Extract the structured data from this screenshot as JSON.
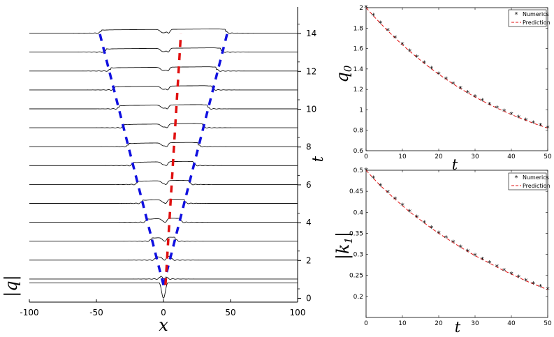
{
  "chart_data": [
    {
      "type": "line",
      "panel": "waterfall",
      "xlabel": "x",
      "ylabel": "t",
      "left_label": "|q|",
      "xlim": [
        -100,
        100
      ],
      "ylim": [
        0,
        14
      ],
      "x_ticks": [
        "-100",
        "-50",
        "0",
        "50",
        "100"
      ],
      "y_ticks": [
        "0",
        "2",
        "4",
        "6",
        "8",
        "10",
        "12",
        "14"
      ],
      "profile_times": [
        0,
        1,
        2,
        3,
        4,
        5,
        6,
        7,
        8,
        9,
        10,
        11,
        12,
        13,
        14
      ],
      "series": [
        {
          "color": "#1010e0",
          "t": [
            0.7,
            14
          ],
          "x": [
            0,
            -47.5
          ]
        },
        {
          "color": "#1010e0",
          "t": [
            0.7,
            14
          ],
          "x": [
            0,
            47.5
          ]
        },
        {
          "color": "#e01010",
          "t": [
            0.7,
            14
          ],
          "x": [
            1.5,
            13
          ]
        }
      ]
    },
    {
      "type": "scatter",
      "panel": "q0",
      "xlabel": "t",
      "ylabel": "q0",
      "xlim": [
        0,
        50
      ],
      "ylim": [
        0.6,
        2
      ],
      "x_ticks": [
        "0",
        "10",
        "20",
        "30",
        "40",
        "50"
      ],
      "y_ticks": [
        "0.6",
        "0.8",
        "1",
        "1.2",
        "1.4",
        "1.6",
        "1.8",
        "2"
      ],
      "legend": [
        "Numerics",
        "Prediction"
      ],
      "legend_position": "top-right",
      "series": [
        {
          "name": "Numerics",
          "color": "#000000",
          "marker": "*",
          "x": [
            0,
            2,
            4,
            6,
            8,
            10,
            12,
            14,
            16,
            18,
            20,
            22,
            24,
            26,
            28,
            30,
            32,
            34,
            36,
            38,
            40,
            42,
            44,
            46,
            48,
            50
          ],
          "y": [
            2.0,
            1.921,
            1.845,
            1.773,
            1.703,
            1.637,
            1.574,
            1.514,
            1.456,
            1.401,
            1.349,
            1.3,
            1.253,
            1.208,
            1.166,
            1.126,
            1.088,
            1.052,
            1.018,
            0.985,
            0.954,
            0.925,
            0.897,
            0.87,
            0.845,
            0.821
          ]
        },
        {
          "name": "Prediction",
          "color": "#e01010",
          "dash": "dashed",
          "x": [
            0,
            2,
            4,
            6,
            8,
            10,
            12,
            14,
            16,
            18,
            20,
            22,
            24,
            26,
            28,
            30,
            32,
            34,
            36,
            38,
            40,
            42,
            44,
            46,
            48,
            50
          ],
          "y": [
            2.0,
            1.921,
            1.845,
            1.773,
            1.703,
            1.637,
            1.574,
            1.514,
            1.456,
            1.401,
            1.349,
            1.3,
            1.253,
            1.208,
            1.166,
            1.126,
            1.088,
            1.052,
            1.018,
            0.985,
            0.954,
            0.925,
            0.897,
            0.87,
            0.845,
            0.821
          ]
        }
      ]
    },
    {
      "type": "scatter",
      "panel": "k1",
      "xlabel": "t",
      "ylabel": "|k1|",
      "xlim": [
        0,
        50
      ],
      "ylim": [
        0.15,
        0.5
      ],
      "x_ticks": [
        "0",
        "10",
        "20",
        "30",
        "40",
        "50"
      ],
      "y_ticks": [
        "0.2",
        "0.25",
        "0.3",
        "0.35",
        "0.4",
        "0.45",
        "0.5"
      ],
      "legend": [
        "Numerics",
        "Prediction"
      ],
      "legend_position": "top-right",
      "series": [
        {
          "name": "Numerics",
          "color": "#000000",
          "marker": "*",
          "x": [
            0,
            2,
            4,
            6,
            8,
            10,
            12,
            14,
            16,
            18,
            20,
            22,
            24,
            26,
            28,
            30,
            32,
            34,
            36,
            38,
            40,
            42,
            44,
            46,
            48,
            50
          ],
          "y": [
            0.5,
            0.481,
            0.463,
            0.447,
            0.431,
            0.416,
            0.401,
            0.388,
            0.375,
            0.362,
            0.35,
            0.339,
            0.328,
            0.317,
            0.307,
            0.297,
            0.288,
            0.279,
            0.27,
            0.261,
            0.253,
            0.245,
            0.237,
            0.23,
            0.223,
            0.216
          ]
        },
        {
          "name": "Prediction",
          "color": "#e01010",
          "dash": "dashed",
          "x": [
            0,
            2,
            4,
            6,
            8,
            10,
            12,
            14,
            16,
            18,
            20,
            22,
            24,
            26,
            28,
            30,
            32,
            34,
            36,
            38,
            40,
            42,
            44,
            46,
            48,
            50
          ],
          "y": [
            0.5,
            0.481,
            0.463,
            0.447,
            0.431,
            0.416,
            0.401,
            0.388,
            0.375,
            0.362,
            0.35,
            0.339,
            0.328,
            0.317,
            0.307,
            0.297,
            0.288,
            0.279,
            0.27,
            0.261,
            0.253,
            0.245,
            0.237,
            0.23,
            0.223,
            0.216
          ]
        }
      ]
    }
  ]
}
